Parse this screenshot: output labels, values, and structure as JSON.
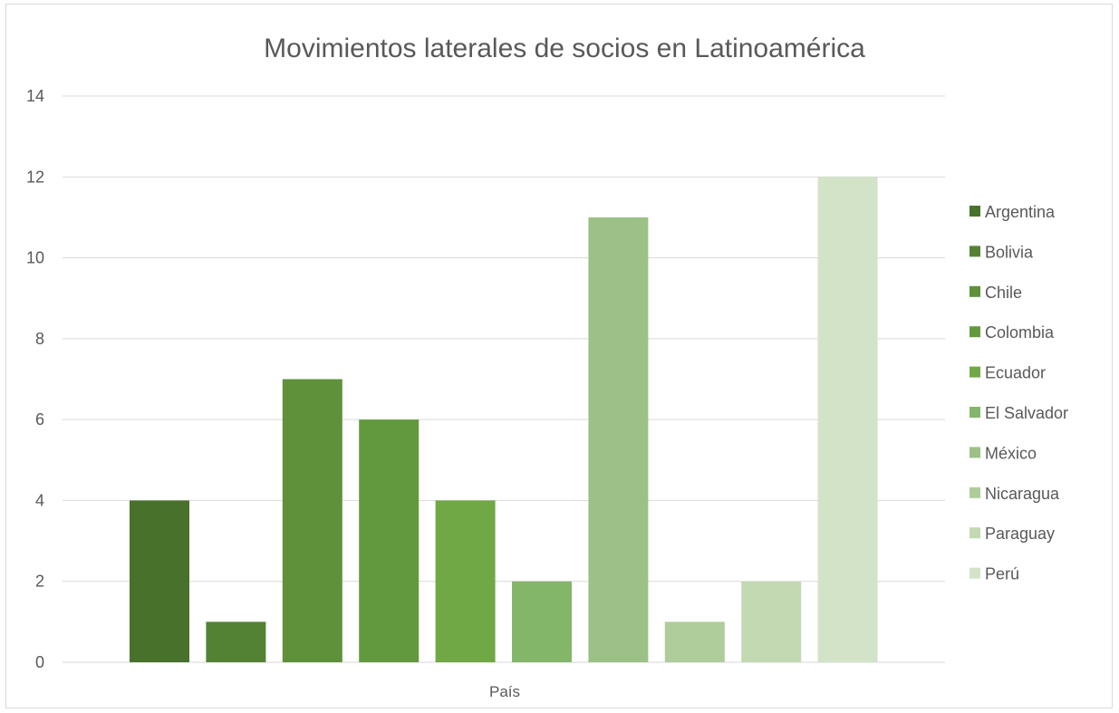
{
  "chart_data": {
    "type": "bar",
    "title": "Movimientos laterales de socios en Latinoamérica",
    "xlabel": "País",
    "ylabel": "",
    "ylim": [
      0,
      14
    ],
    "yticks": [
      0,
      2,
      4,
      6,
      8,
      10,
      12,
      14
    ],
    "grid": true,
    "legend_position": "right",
    "categories": [
      "País"
    ],
    "series": [
      {
        "name": "Argentina",
        "values": [
          4
        ],
        "color": "#48722c"
      },
      {
        "name": "Bolivia",
        "values": [
          1
        ],
        "color": "#548235"
      },
      {
        "name": "Chile",
        "values": [
          7
        ],
        "color": "#5e913a"
      },
      {
        "name": "Colombia",
        "values": [
          6
        ],
        "color": "#63993e"
      },
      {
        "name": "Ecuador",
        "values": [
          4
        ],
        "color": "#70a845"
      },
      {
        "name": "El Salvador",
        "values": [
          2
        ],
        "color": "#84b66a"
      },
      {
        "name": "México",
        "values": [
          11
        ],
        "color": "#9cc186"
      },
      {
        "name": "Nicaragua",
        "values": [
          1
        ],
        "color": "#aecd9a"
      },
      {
        "name": "Paraguay",
        "values": [
          2
        ],
        "color": "#c2d9b2"
      },
      {
        "name": "Perú",
        "values": [
          12
        ],
        "color": "#d3e3c8"
      }
    ]
  }
}
